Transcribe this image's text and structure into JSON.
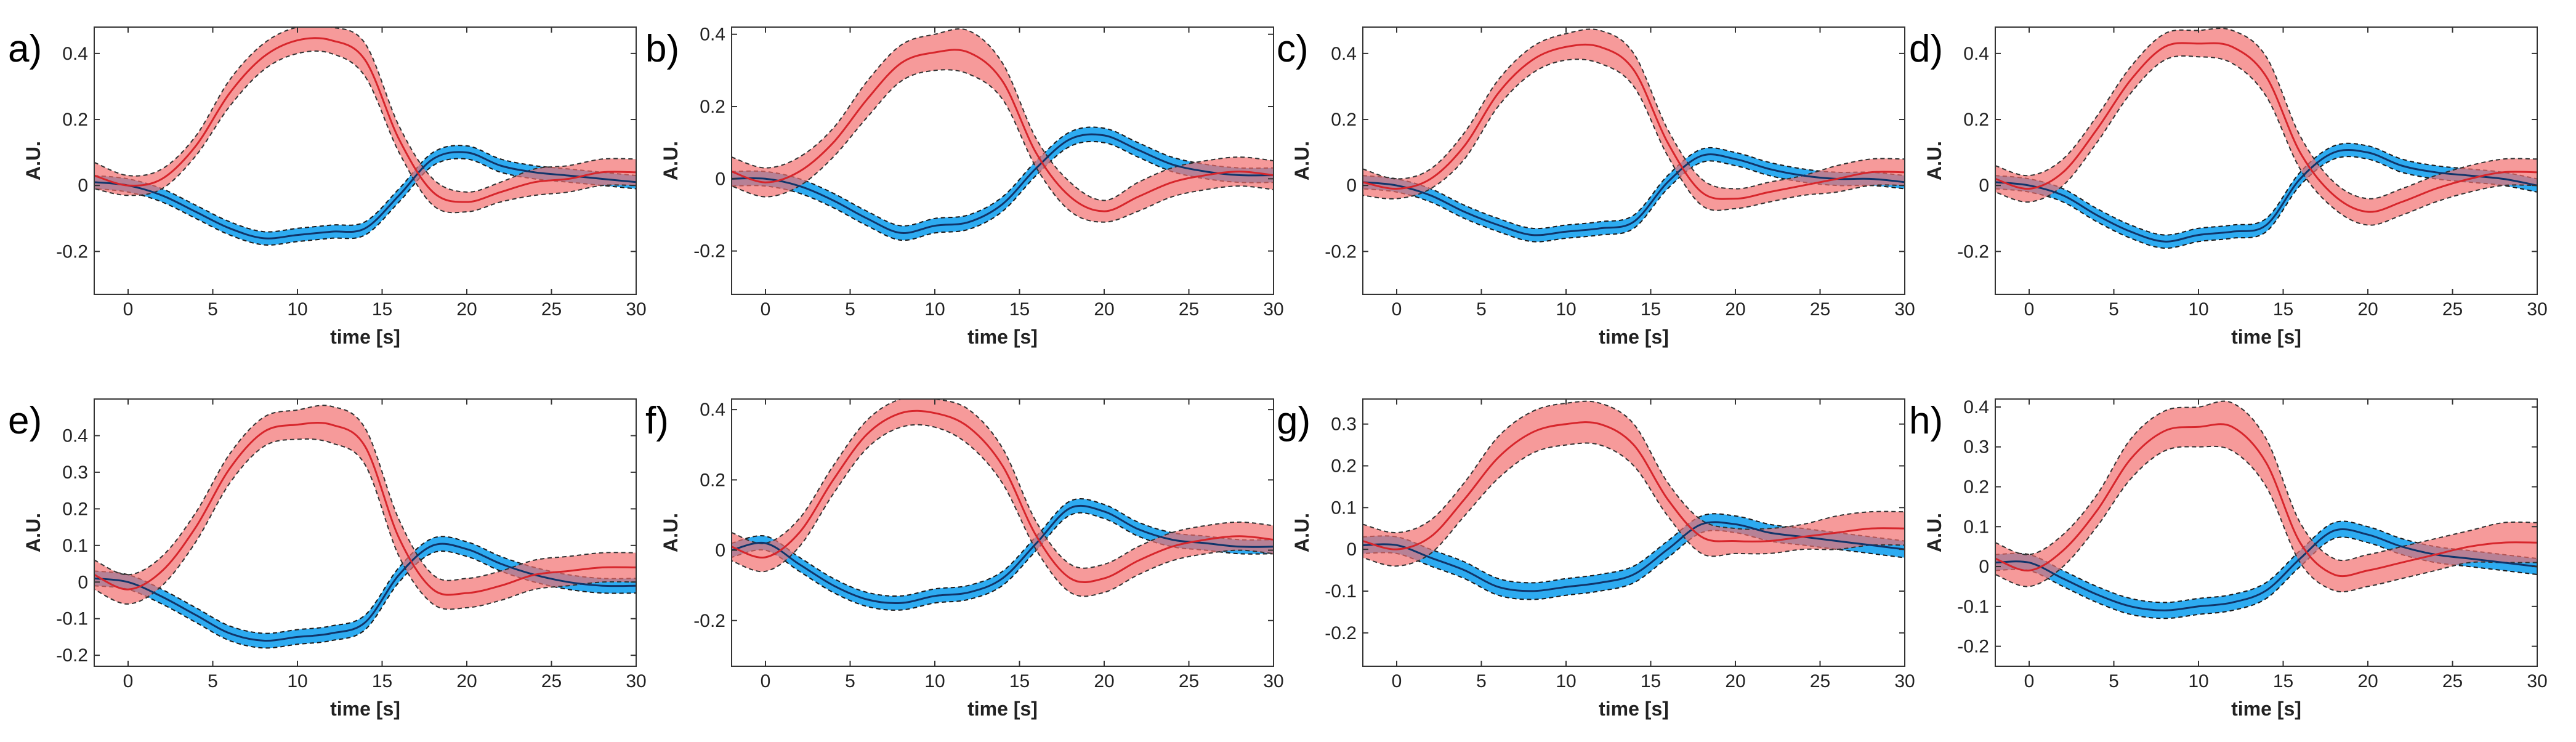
{
  "chart_data": [
    {
      "label": "a)",
      "type": "line",
      "xlabel": "time [s]",
      "ylabel": "A.U.",
      "xlim": [
        -2,
        30
      ],
      "ylim": [
        -0.33,
        0.48
      ],
      "xticks": [
        0,
        5,
        10,
        15,
        20,
        25,
        30
      ],
      "yticks": [
        -0.2,
        0,
        0.2,
        0.4
      ],
      "x": [
        -2,
        0,
        2,
        4,
        6,
        8,
        10,
        12,
        14,
        16,
        18,
        20,
        22,
        24,
        26,
        28,
        30
      ],
      "series": [
        {
          "name": "red",
          "color": "#d7262c",
          "values": [
            0.03,
            0.0,
            0.02,
            0.12,
            0.28,
            0.39,
            0.44,
            0.44,
            0.38,
            0.14,
            -0.02,
            -0.05,
            -0.02,
            0.01,
            0.02,
            0.04,
            0.04
          ],
          "error": [
            0.04,
            0.03,
            0.03,
            0.03,
            0.04,
            0.04,
            0.04,
            0.04,
            0.05,
            0.04,
            0.04,
            0.03,
            0.03,
            0.04,
            0.04,
            0.04,
            0.04
          ]
        },
        {
          "name": "blue",
          "color": "#10356a",
          "values": [
            0.01,
            0.0,
            -0.03,
            -0.08,
            -0.13,
            -0.16,
            -0.15,
            -0.14,
            -0.13,
            -0.03,
            0.08,
            0.1,
            0.06,
            0.04,
            0.03,
            0.02,
            0.01
          ],
          "error": [
            0.02,
            0.02,
            0.02,
            0.02,
            0.02,
            0.02,
            0.02,
            0.02,
            0.02,
            0.02,
            0.02,
            0.02,
            0.02,
            0.02,
            0.02,
            0.02,
            0.02
          ]
        }
      ]
    },
    {
      "label": "b)",
      "type": "line",
      "xlabel": "time [s]",
      "ylabel": "A.U.",
      "xlim": [
        -2,
        30
      ],
      "ylim": [
        -0.32,
        0.42
      ],
      "xticks": [
        0,
        5,
        10,
        15,
        20,
        25,
        30
      ],
      "yticks": [
        -0.2,
        0,
        0.2,
        0.4
      ],
      "x": [
        -2,
        0,
        2,
        4,
        6,
        8,
        10,
        12,
        14,
        16,
        18,
        20,
        22,
        24,
        26,
        28,
        30
      ],
      "series": [
        {
          "name": "red",
          "color": "#d7262c",
          "values": [
            0.02,
            -0.01,
            0.02,
            0.1,
            0.22,
            0.32,
            0.35,
            0.35,
            0.27,
            0.07,
            -0.05,
            -0.09,
            -0.05,
            -0.01,
            0.01,
            0.02,
            0.01
          ],
          "error": [
            0.04,
            0.04,
            0.04,
            0.04,
            0.05,
            0.05,
            0.05,
            0.06,
            0.05,
            0.04,
            0.04,
            0.03,
            0.04,
            0.04,
            0.04,
            0.04,
            0.04
          ]
        },
        {
          "name": "blue",
          "color": "#10356a",
          "values": [
            0.0,
            0.0,
            -0.02,
            -0.06,
            -0.11,
            -0.15,
            -0.13,
            -0.12,
            -0.07,
            0.03,
            0.11,
            0.12,
            0.08,
            0.04,
            0.02,
            0.01,
            0.01
          ],
          "error": [
            0.02,
            0.02,
            0.02,
            0.02,
            0.02,
            0.02,
            0.02,
            0.02,
            0.02,
            0.02,
            0.02,
            0.02,
            0.02,
            0.02,
            0.02,
            0.02,
            0.02
          ]
        }
      ]
    },
    {
      "label": "c)",
      "type": "line",
      "xlabel": "time [s]",
      "ylabel": "A.U.",
      "xlim": [
        -2,
        30
      ],
      "ylim": [
        -0.33,
        0.48
      ],
      "xticks": [
        0,
        5,
        10,
        15,
        20,
        25,
        30
      ],
      "yticks": [
        -0.2,
        0,
        0.2,
        0.4
      ],
      "x": [
        -2,
        0,
        2,
        4,
        6,
        8,
        10,
        12,
        14,
        16,
        18,
        20,
        22,
        24,
        26,
        28,
        30
      ],
      "series": [
        {
          "name": "red",
          "color": "#d7262c",
          "values": [
            0.01,
            -0.01,
            0.02,
            0.12,
            0.28,
            0.38,
            0.42,
            0.42,
            0.35,
            0.13,
            -0.02,
            -0.04,
            -0.02,
            0.0,
            0.02,
            0.04,
            0.04
          ],
          "error": [
            0.04,
            0.03,
            0.03,
            0.04,
            0.04,
            0.04,
            0.04,
            0.05,
            0.05,
            0.04,
            0.04,
            0.03,
            0.03,
            0.03,
            0.04,
            0.04,
            0.04
          ]
        },
        {
          "name": "blue",
          "color": "#10356a",
          "values": [
            0.01,
            0.0,
            -0.03,
            -0.08,
            -0.12,
            -0.15,
            -0.14,
            -0.13,
            -0.11,
            0.01,
            0.09,
            0.08,
            0.05,
            0.03,
            0.02,
            0.02,
            0.01
          ],
          "error": [
            0.02,
            0.02,
            0.02,
            0.02,
            0.02,
            0.02,
            0.02,
            0.02,
            0.02,
            0.02,
            0.02,
            0.02,
            0.02,
            0.02,
            0.02,
            0.02,
            0.02
          ]
        }
      ]
    },
    {
      "label": "d)",
      "type": "line",
      "xlabel": "time [s]",
      "ylabel": "A.U.",
      "xlim": [
        -2,
        30
      ],
      "ylim": [
        -0.33,
        0.48
      ],
      "xticks": [
        0,
        5,
        10,
        15,
        20,
        25,
        30
      ],
      "yticks": [
        -0.2,
        0,
        0.2,
        0.4
      ],
      "x": [
        -2,
        0,
        2,
        4,
        6,
        8,
        10,
        12,
        14,
        16,
        18,
        20,
        22,
        24,
        26,
        28,
        30
      ],
      "series": [
        {
          "name": "red",
          "color": "#d7262c",
          "values": [
            0.02,
            -0.01,
            0.04,
            0.17,
            0.32,
            0.42,
            0.43,
            0.42,
            0.33,
            0.1,
            -0.03,
            -0.08,
            -0.05,
            -0.01,
            0.02,
            0.04,
            0.04
          ],
          "error": [
            0.04,
            0.04,
            0.04,
            0.04,
            0.04,
            0.04,
            0.04,
            0.05,
            0.06,
            0.05,
            0.04,
            0.04,
            0.04,
            0.04,
            0.04,
            0.04,
            0.04
          ]
        },
        {
          "name": "blue",
          "color": "#10356a",
          "values": [
            0.01,
            0.0,
            -0.03,
            -0.09,
            -0.14,
            -0.17,
            -0.15,
            -0.14,
            -0.12,
            0.02,
            0.1,
            0.1,
            0.06,
            0.04,
            0.03,
            0.02,
            0.0
          ],
          "error": [
            0.02,
            0.02,
            0.02,
            0.02,
            0.02,
            0.02,
            0.02,
            0.02,
            0.02,
            0.02,
            0.02,
            0.02,
            0.02,
            0.02,
            0.02,
            0.02,
            0.02
          ]
        }
      ]
    },
    {
      "label": "e)",
      "type": "line",
      "xlabel": "time [s]",
      "ylabel": "A.U.",
      "xlim": [
        -2,
        30
      ],
      "ylim": [
        -0.23,
        0.5
      ],
      "xticks": [
        0,
        5,
        10,
        15,
        20,
        25,
        30
      ],
      "yticks": [
        -0.2,
        -0.1,
        0,
        0.1,
        0.2,
        0.3,
        0.4
      ],
      "x": [
        -2,
        0,
        2,
        4,
        6,
        8,
        10,
        12,
        14,
        16,
        18,
        20,
        22,
        24,
        26,
        28,
        30
      ],
      "series": [
        {
          "name": "red",
          "color": "#d7262c",
          "values": [
            0.02,
            -0.02,
            0.03,
            0.15,
            0.31,
            0.41,
            0.43,
            0.43,
            0.37,
            0.12,
            -0.02,
            -0.03,
            -0.01,
            0.02,
            0.03,
            0.04,
            0.04
          ],
          "error": [
            0.04,
            0.04,
            0.04,
            0.04,
            0.04,
            0.04,
            0.04,
            0.05,
            0.05,
            0.05,
            0.04,
            0.04,
            0.04,
            0.04,
            0.04,
            0.04,
            0.04
          ]
        },
        {
          "name": "blue",
          "color": "#10356a",
          "values": [
            0.01,
            0.0,
            -0.04,
            -0.09,
            -0.14,
            -0.16,
            -0.15,
            -0.14,
            -0.11,
            0.02,
            0.1,
            0.09,
            0.05,
            0.02,
            0.0,
            -0.01,
            -0.01
          ],
          "error": [
            0.02,
            0.02,
            0.02,
            0.02,
            0.02,
            0.02,
            0.02,
            0.02,
            0.02,
            0.02,
            0.02,
            0.02,
            0.02,
            0.02,
            0.02,
            0.02,
            0.02
          ]
        }
      ]
    },
    {
      "label": "f)",
      "type": "line",
      "xlabel": "time [s]",
      "ylabel": "A.U.",
      "xlim": [
        -2,
        30
      ],
      "ylim": [
        -0.33,
        0.43
      ],
      "xticks": [
        0,
        5,
        10,
        15,
        20,
        25,
        30
      ],
      "yticks": [
        -0.2,
        0,
        0.2,
        0.4
      ],
      "x": [
        -2,
        0,
        2,
        4,
        6,
        8,
        10,
        12,
        14,
        16,
        18,
        20,
        22,
        24,
        26,
        28,
        30
      ],
      "series": [
        {
          "name": "red",
          "color": "#d7262c",
          "values": [
            0.01,
            -0.02,
            0.05,
            0.2,
            0.33,
            0.39,
            0.39,
            0.35,
            0.24,
            0.04,
            -0.08,
            -0.08,
            -0.03,
            0.01,
            0.03,
            0.04,
            0.03
          ],
          "error": [
            0.04,
            0.04,
            0.04,
            0.04,
            0.04,
            0.04,
            0.04,
            0.05,
            0.05,
            0.04,
            0.04,
            0.04,
            0.04,
            0.04,
            0.04,
            0.04,
            0.04
          ]
        },
        {
          "name": "blue",
          "color": "#10356a",
          "values": [
            0.0,
            0.02,
            -0.04,
            -0.1,
            -0.14,
            -0.15,
            -0.13,
            -0.12,
            -0.08,
            0.02,
            0.12,
            0.11,
            0.06,
            0.03,
            0.02,
            0.01,
            0.01
          ],
          "error": [
            0.02,
            0.02,
            0.02,
            0.02,
            0.02,
            0.02,
            0.02,
            0.02,
            0.02,
            0.02,
            0.02,
            0.02,
            0.02,
            0.02,
            0.02,
            0.02,
            0.02
          ]
        }
      ]
    },
    {
      "label": "g)",
      "type": "line",
      "xlabel": "time [s]",
      "ylabel": "A.U.",
      "xlim": [
        -2,
        30
      ],
      "ylim": [
        -0.28,
        0.36
      ],
      "xticks": [
        0,
        5,
        10,
        15,
        20,
        25,
        30
      ],
      "yticks": [
        -0.2,
        -0.1,
        0,
        0.1,
        0.2,
        0.3
      ],
      "x": [
        -2,
        0,
        2,
        4,
        6,
        8,
        10,
        12,
        14,
        16,
        18,
        20,
        22,
        24,
        26,
        28,
        30
      ],
      "series": [
        {
          "name": "red",
          "color": "#d7262c",
          "values": [
            0.02,
            0.0,
            0.03,
            0.12,
            0.22,
            0.28,
            0.3,
            0.3,
            0.25,
            0.12,
            0.03,
            0.02,
            0.02,
            0.03,
            0.04,
            0.05,
            0.05
          ],
          "error": [
            0.04,
            0.04,
            0.04,
            0.04,
            0.05,
            0.05,
            0.05,
            0.05,
            0.05,
            0.04,
            0.04,
            0.03,
            0.03,
            0.03,
            0.04,
            0.04,
            0.04
          ]
        },
        {
          "name": "blue",
          "color": "#10356a",
          "values": [
            0.01,
            0.01,
            -0.02,
            -0.05,
            -0.09,
            -0.1,
            -0.09,
            -0.08,
            -0.06,
            0.0,
            0.06,
            0.06,
            0.04,
            0.03,
            0.02,
            0.01,
            0.0
          ],
          "error": [
            0.02,
            0.02,
            0.02,
            0.02,
            0.02,
            0.02,
            0.02,
            0.02,
            0.02,
            0.02,
            0.02,
            0.02,
            0.02,
            0.02,
            0.02,
            0.02,
            0.02
          ]
        }
      ]
    },
    {
      "label": "h)",
      "type": "line",
      "xlabel": "time [s]",
      "ylabel": "A.U.",
      "xlim": [
        -2,
        30
      ],
      "ylim": [
        -0.25,
        0.42
      ],
      "xticks": [
        0,
        5,
        10,
        15,
        20,
        25,
        30
      ],
      "yticks": [
        -0.2,
        -0.1,
        0,
        0.1,
        0.2,
        0.3,
        0.4
      ],
      "x": [
        -2,
        0,
        2,
        4,
        6,
        8,
        10,
        12,
        14,
        16,
        18,
        20,
        22,
        24,
        26,
        28,
        30
      ],
      "series": [
        {
          "name": "red",
          "color": "#d7262c",
          "values": [
            0.02,
            -0.01,
            0.04,
            0.14,
            0.27,
            0.34,
            0.35,
            0.35,
            0.26,
            0.06,
            -0.02,
            -0.01,
            0.01,
            0.03,
            0.05,
            0.06,
            0.06
          ],
          "error": [
            0.04,
            0.04,
            0.04,
            0.04,
            0.05,
            0.05,
            0.05,
            0.06,
            0.06,
            0.05,
            0.04,
            0.04,
            0.04,
            0.04,
            0.04,
            0.05,
            0.05
          ]
        },
        {
          "name": "blue",
          "color": "#10356a",
          "values": [
            0.01,
            0.01,
            -0.03,
            -0.07,
            -0.1,
            -0.11,
            -0.1,
            -0.09,
            -0.06,
            0.02,
            0.09,
            0.08,
            0.05,
            0.03,
            0.02,
            0.01,
            0.0
          ],
          "error": [
            0.02,
            0.02,
            0.02,
            0.02,
            0.02,
            0.02,
            0.02,
            0.02,
            0.02,
            0.02,
            0.02,
            0.02,
            0.02,
            0.02,
            0.02,
            0.02,
            0.02
          ]
        }
      ]
    }
  ]
}
